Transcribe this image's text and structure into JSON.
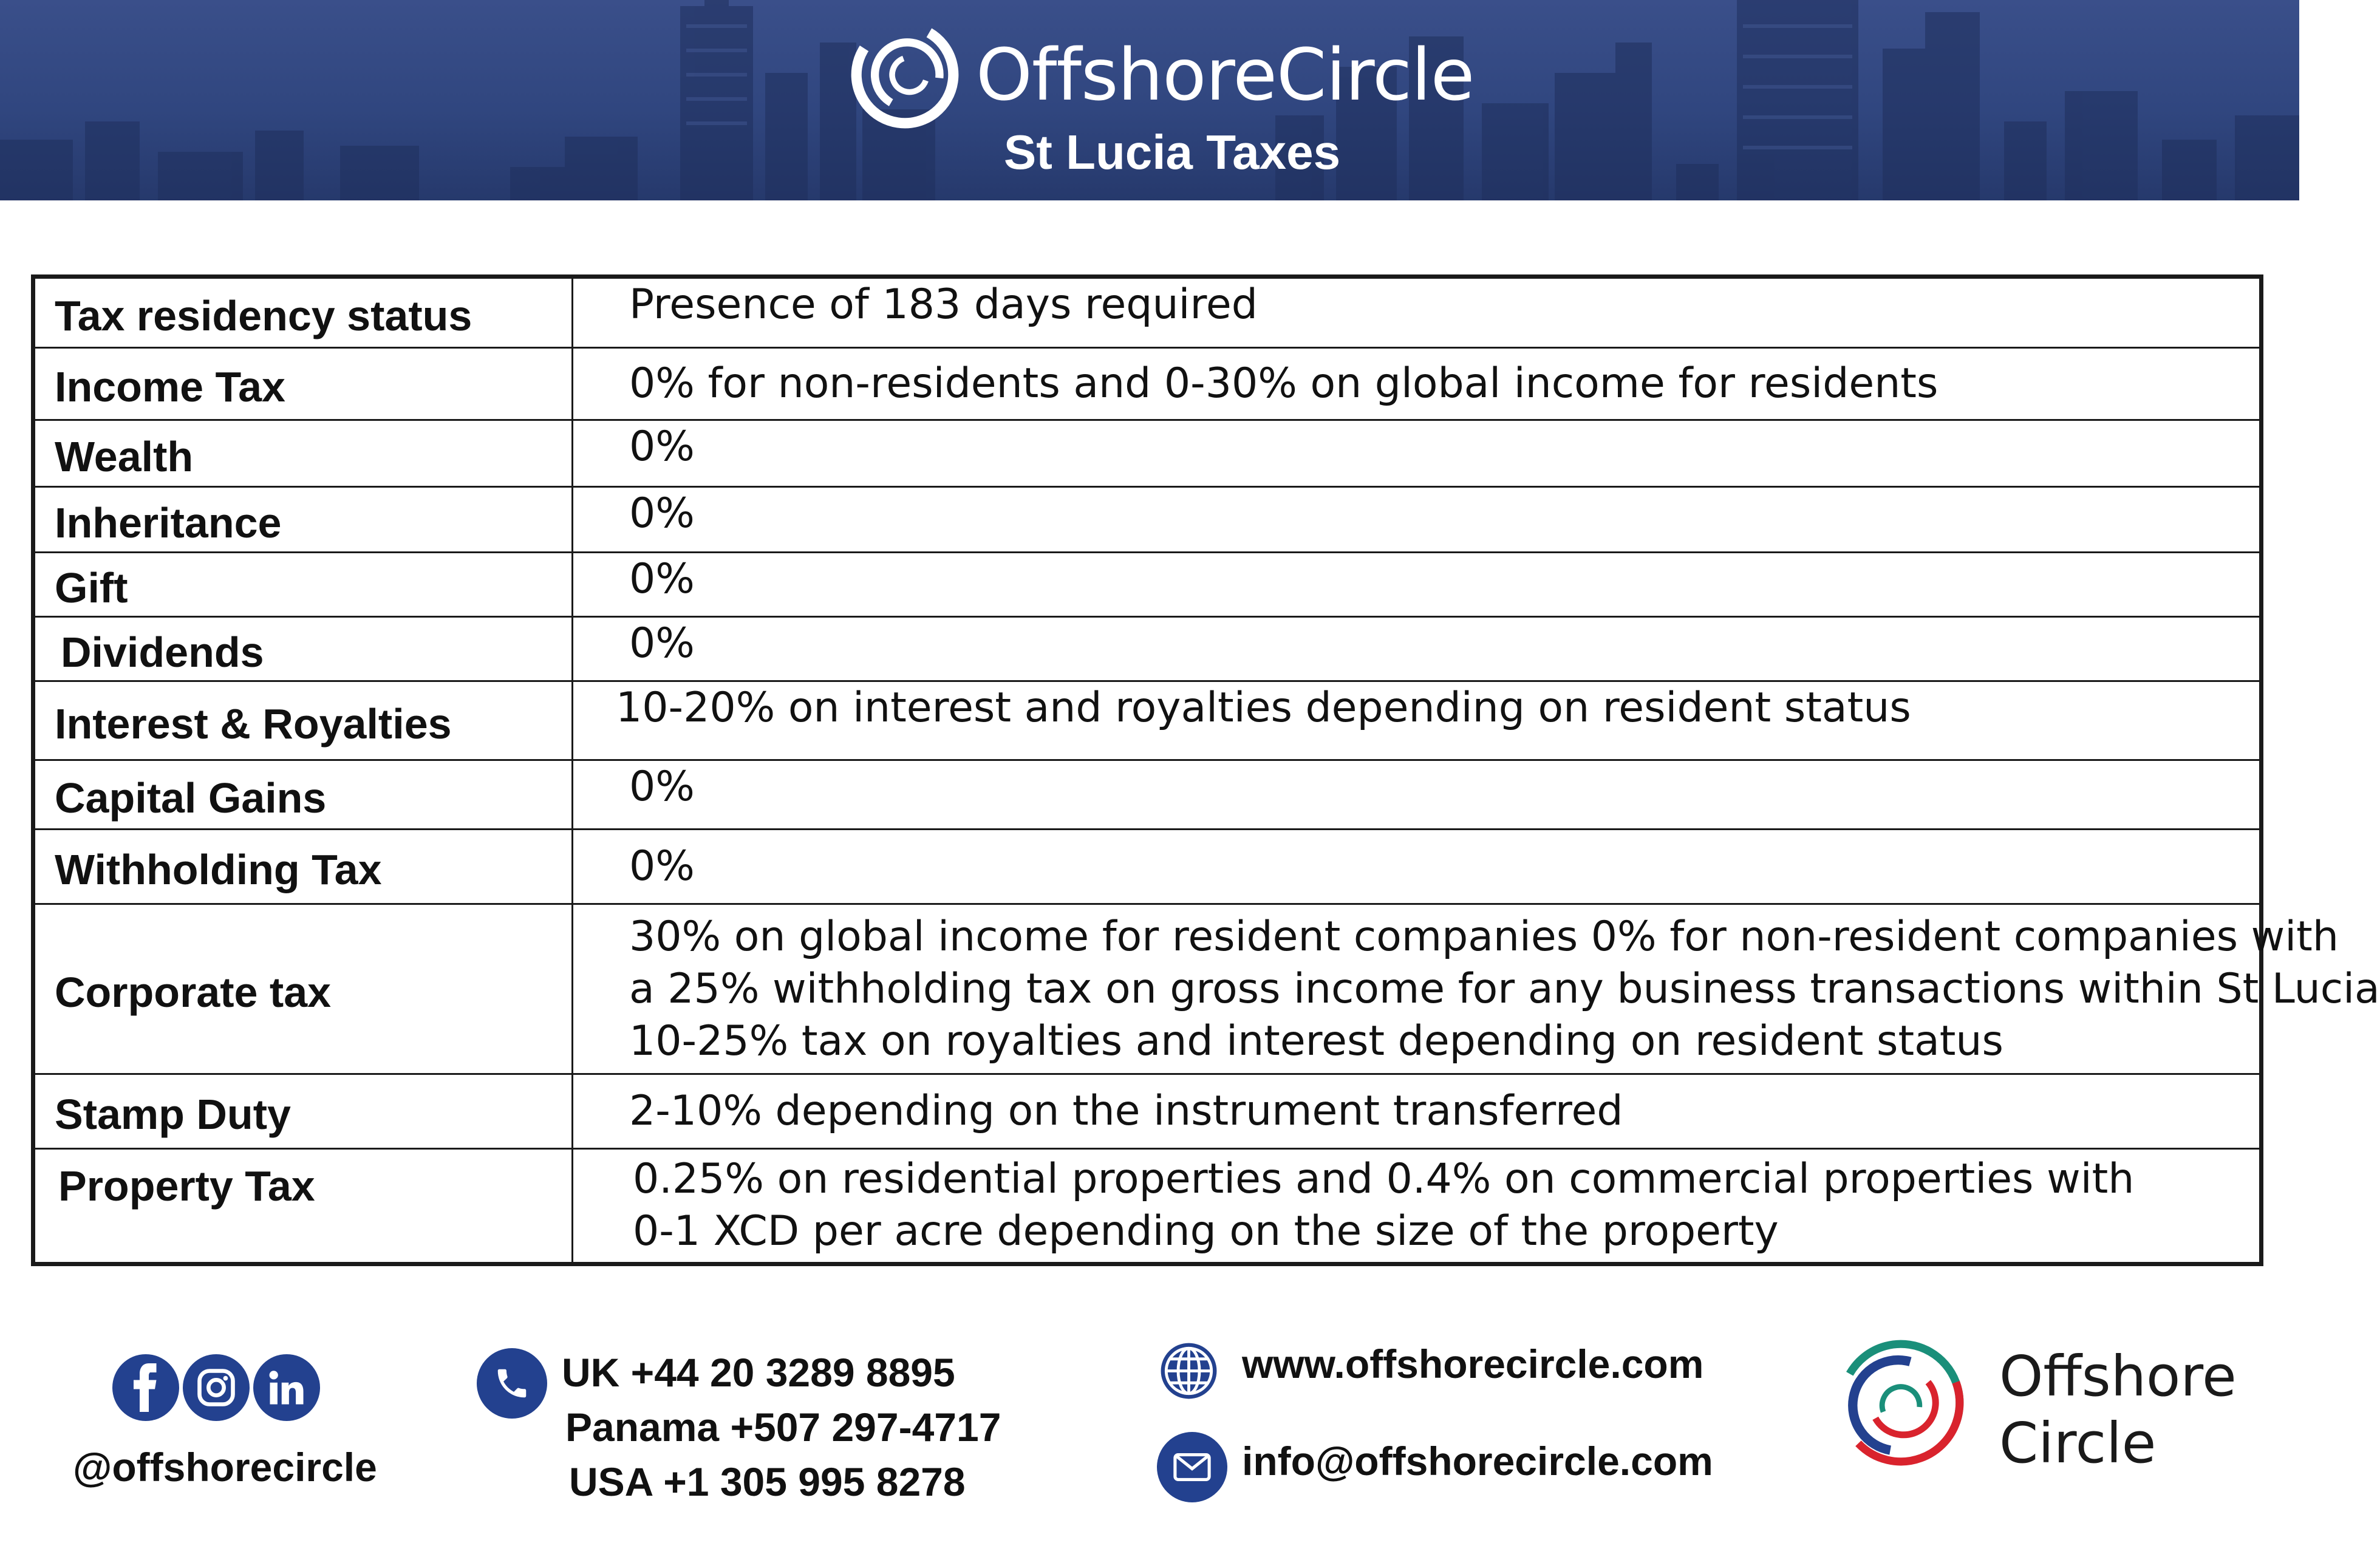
{
  "header": {
    "brand_name": "OffshoreCircle",
    "subtitle": "St Lucia Taxes"
  },
  "table": {
    "rows": [
      {
        "label": "Tax residency status",
        "lines": [
          "Presence of 183 days required"
        ]
      },
      {
        "label": "Income Tax",
        "lines": [
          "0% for non-residents and 0-30% on global income for residents"
        ]
      },
      {
        "label": "Wealth",
        "lines": [
          "0%"
        ]
      },
      {
        "label": "Inheritance",
        "lines": [
          "0%"
        ]
      },
      {
        "label": "Gift",
        "lines": [
          "0%"
        ]
      },
      {
        "label": "Dividends",
        "lines": [
          "0%"
        ]
      },
      {
        "label": "Interest & Royalties",
        "lines": [
          "10-20% on interest and royalties depending on resident status"
        ]
      },
      {
        "label": "Capital Gains",
        "lines": [
          "0%"
        ]
      },
      {
        "label": "Withholding Tax",
        "lines": [
          "0%"
        ]
      },
      {
        "label": "Corporate tax",
        "lines": [
          "30% on global income for resident companies 0% for non-resident companies with",
          "a 25% withholding tax on gross income for any business transactions within St Lucia",
          "10-25% tax on royalties and interest depending on resident status"
        ]
      },
      {
        "label": "Stamp Duty",
        "lines": [
          "2-10% depending on the instrument transferred"
        ]
      },
      {
        "label": "Property Tax",
        "lines": [
          "0.25% on residential properties and 0.4% on commercial properties with",
          "0-1 XCD per acre depending on the size of the property"
        ]
      }
    ]
  },
  "footer": {
    "social_handle": "@offshorecircle",
    "phones": [
      "UK +44 20 3289 8895",
      "Panama +507 297-4717",
      "USA +1 305 995 8278"
    ],
    "website": "www.offshorecircle.com",
    "email": "info@offshorecircle.com",
    "logo_line1": "Offshore",
    "logo_line2": "Circle"
  },
  "icons": [
    "facebook-icon",
    "instagram-icon",
    "linkedin-icon",
    "phone-icon",
    "globe-icon",
    "mail-icon"
  ],
  "colors": {
    "brand_blue": "#23418f",
    "banner_blue": "#30467f",
    "logo_red": "#d9232d",
    "logo_green": "#1a8f7a"
  }
}
